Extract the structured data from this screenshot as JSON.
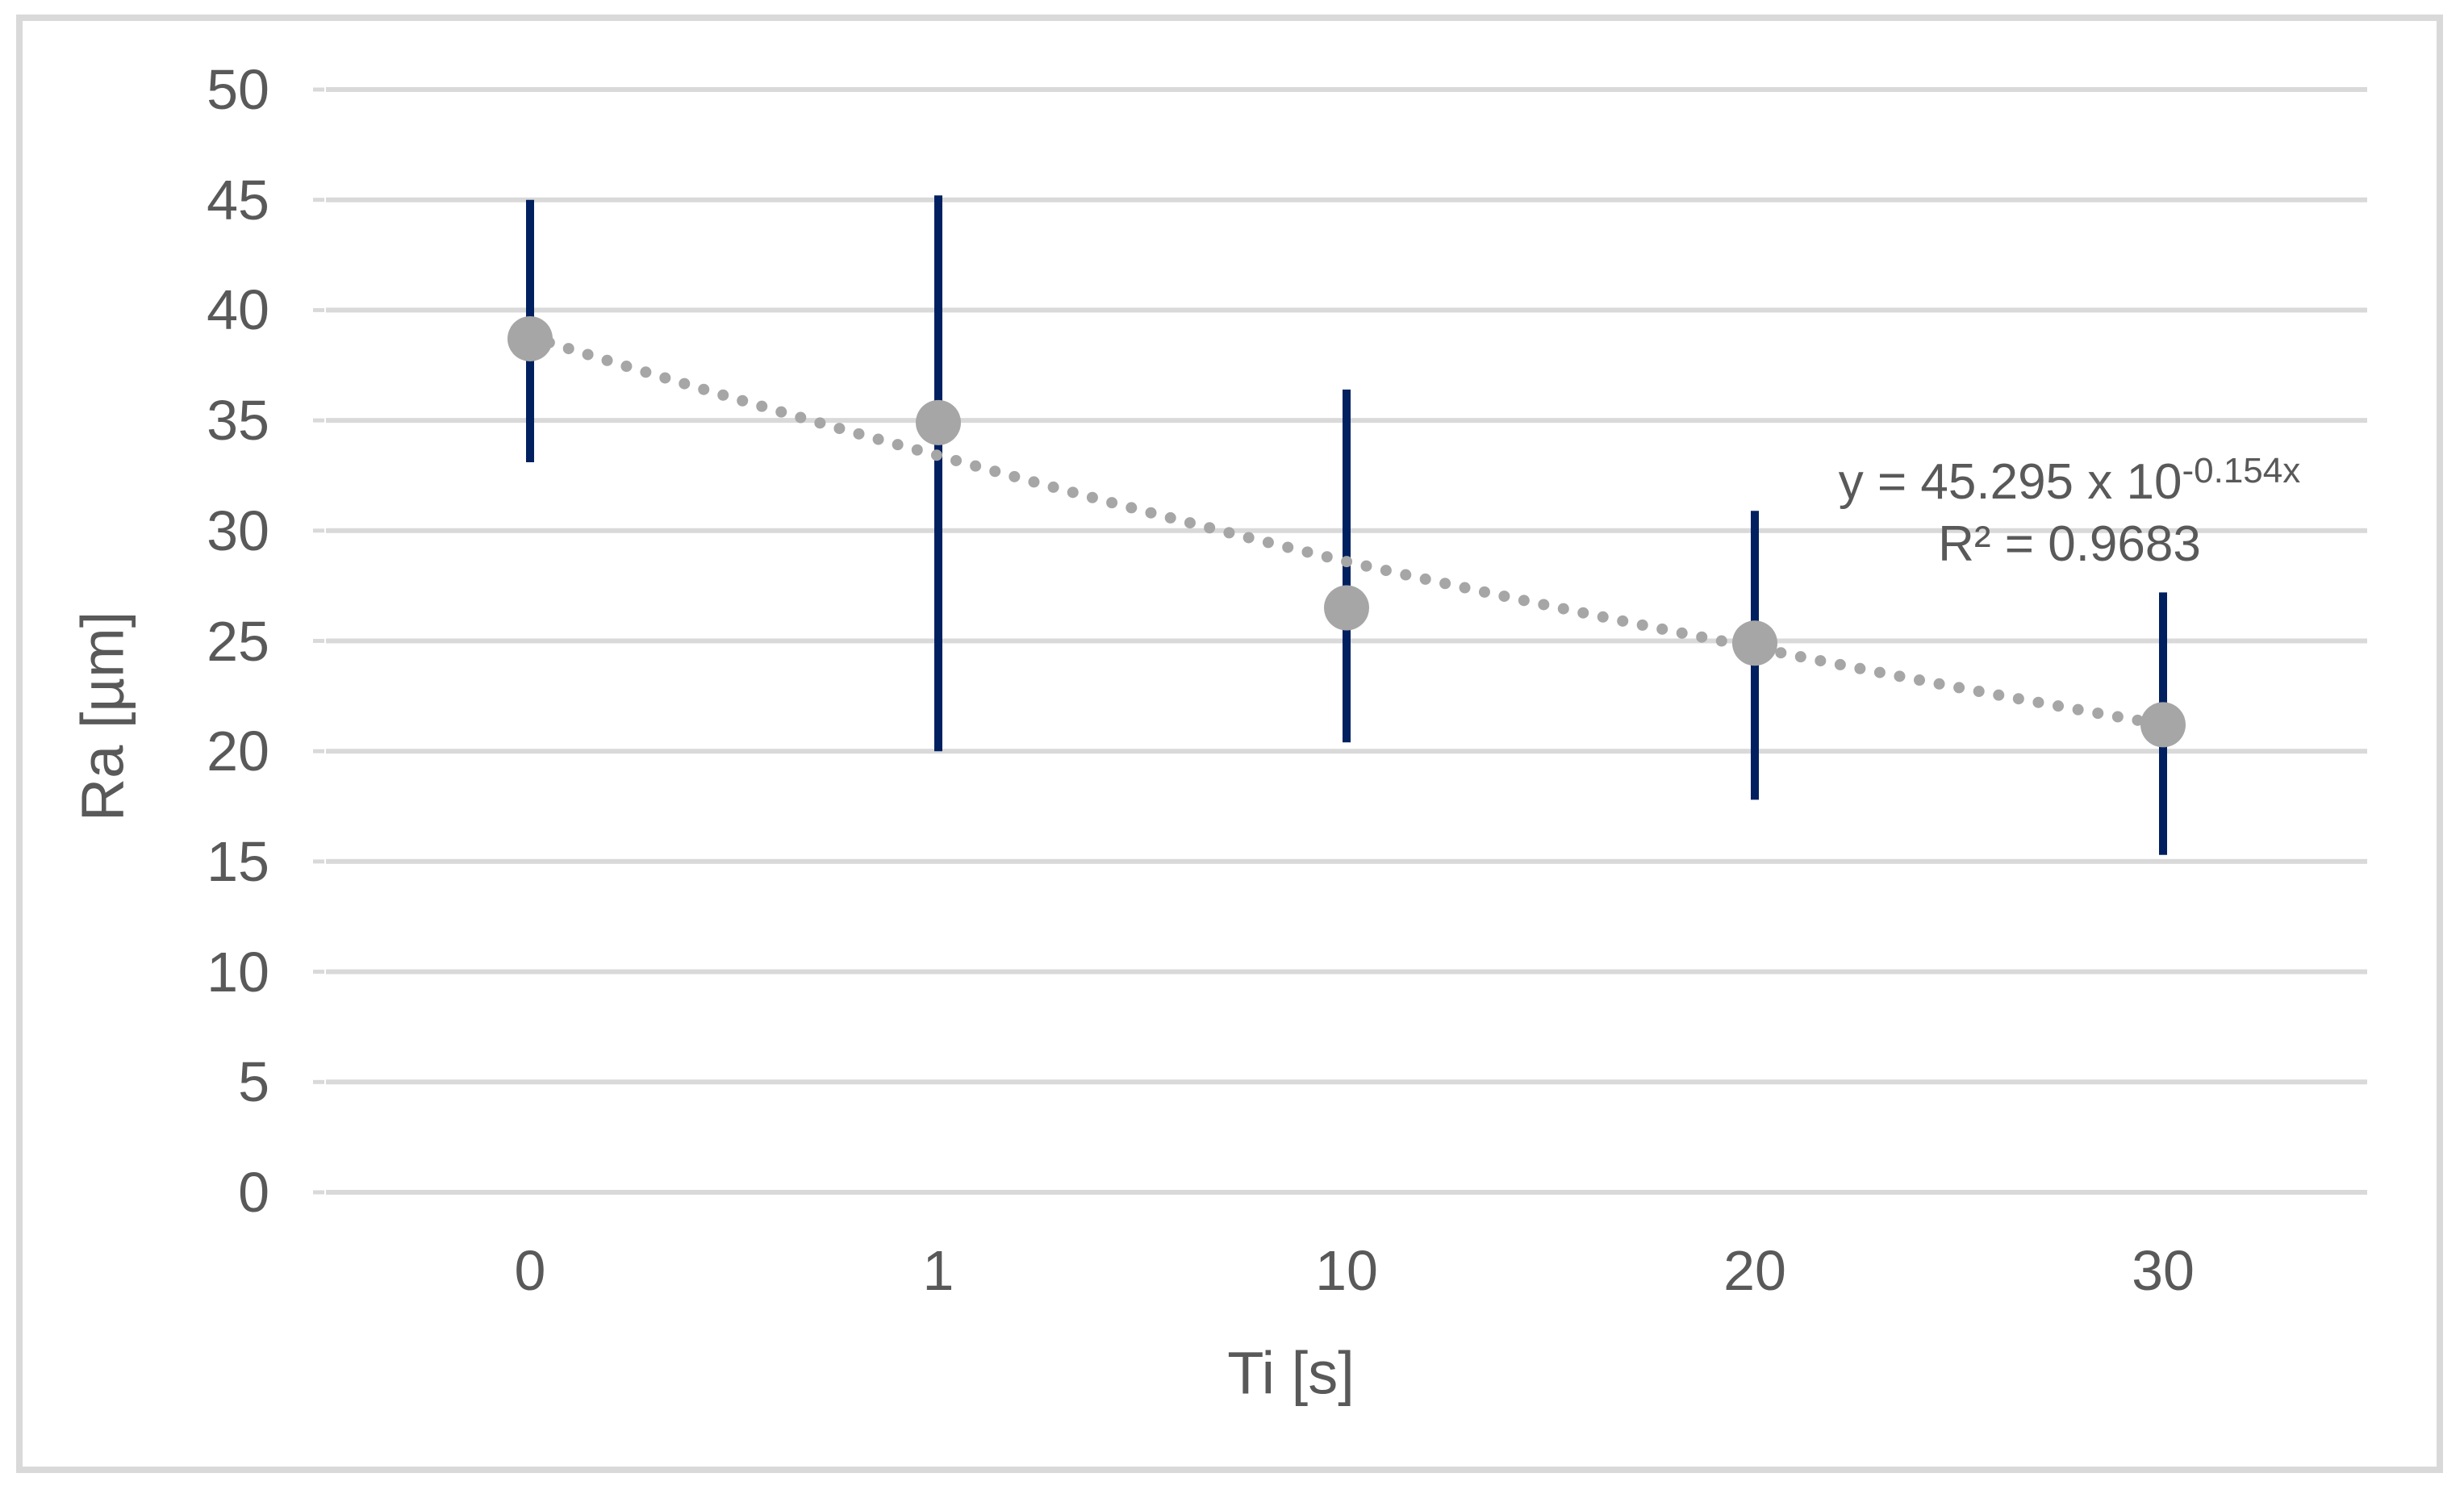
{
  "chart_data": {
    "type": "scatter",
    "title": "",
    "xlabel": "Ti [s]",
    "ylabel": "Ra [µm]",
    "categories": [
      "0",
      "1",
      "10",
      "20",
      "30"
    ],
    "series": [
      {
        "name": "Ra",
        "values": [
          38.7,
          34.9,
          26.5,
          24.9,
          21.2
        ],
        "error_low": [
          33.1,
          20.0,
          20.4,
          17.8,
          15.3
        ],
        "error_high": [
          45.0,
          45.2,
          36.4,
          30.9,
          27.2
        ]
      }
    ],
    "trend": {
      "style": "dotted",
      "values": [
        38.8,
        33.4,
        28.6,
        24.7,
        21.2
      ]
    },
    "ylim": [
      0,
      50
    ],
    "yticks": [
      0,
      5,
      10,
      15,
      20,
      25,
      30,
      35,
      40,
      45,
      50
    ],
    "ytick_step": 5,
    "grid": true,
    "legend": false,
    "annotation": {
      "equation_base": "y = 45.295 x 10",
      "equation_exp": "-0.154x",
      "r2": "R² = 0.9683"
    }
  },
  "colors": {
    "background": "#ffffff",
    "marker": "#a6a6a6",
    "trendline": "#a6a6a6",
    "error_bar": "#002060",
    "gridline": "#d9d9d9",
    "border": "#d9d9d9",
    "text": "#595959"
  }
}
